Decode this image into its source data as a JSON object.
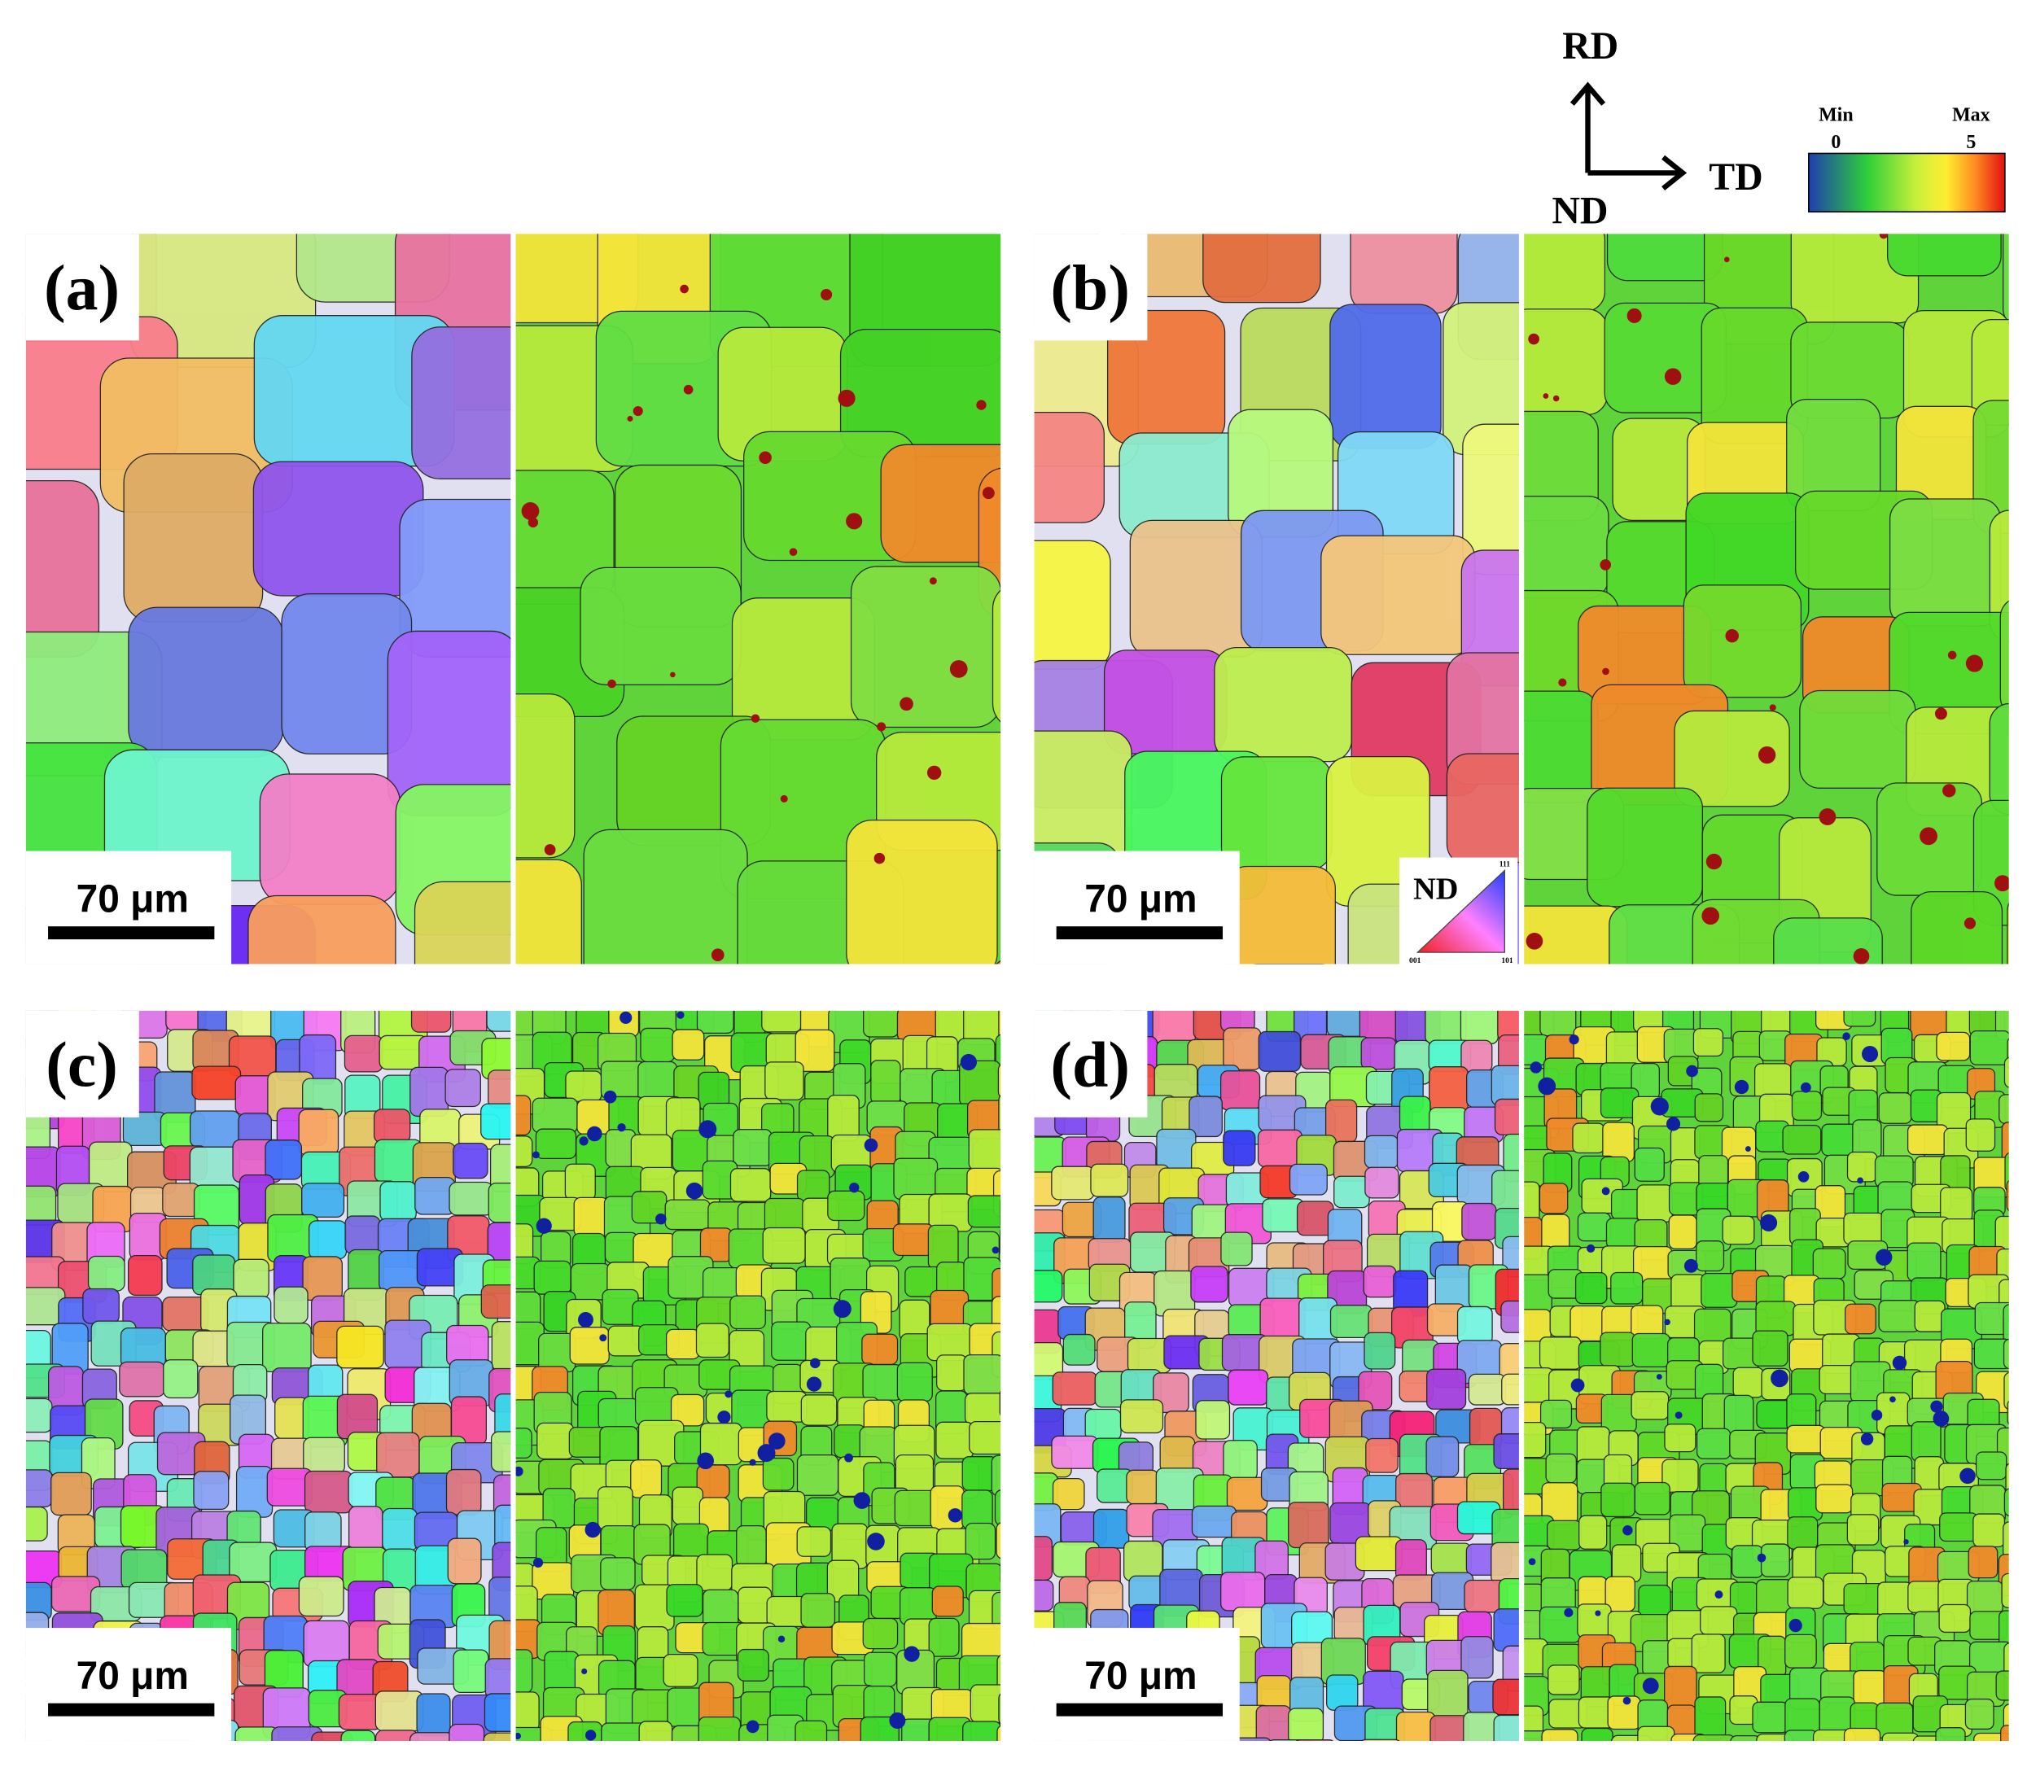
{
  "panels": [
    {
      "label": "(a)",
      "scale_bar": "70 μm"
    },
    {
      "label": "(b)",
      "scale_bar": "70 μm"
    },
    {
      "label": "(c)",
      "scale_bar": "70 μm"
    },
    {
      "label": "(d)",
      "scale_bar": "70 μm"
    }
  ],
  "axes": {
    "up": "RD",
    "right": "TD",
    "normal": "ND"
  },
  "colorbar": {
    "min_label": "Min",
    "max_label": "Max",
    "min_value": "0",
    "max_value": "5"
  },
  "ipf_key": {
    "label": "ND",
    "top": "111",
    "left": "001",
    "right": "101"
  }
}
